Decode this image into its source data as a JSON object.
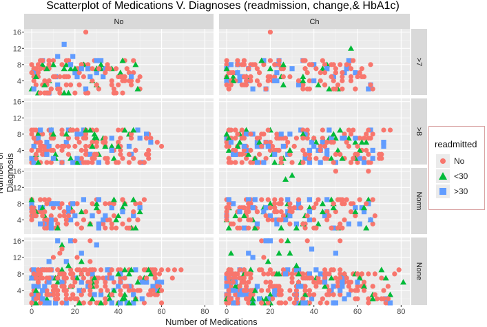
{
  "chart_data": {
    "type": "scatter",
    "title": "Scatterplot of Medications V. Diagnoses (readmission, change,& HbA1c)",
    "xlabel": "Number of Medications",
    "ylabel": "Number of Diagnosis",
    "xlim": [
      -3.5,
      84
    ],
    "ylim": [
      0.5,
      16.8
    ],
    "xticks": [
      "0",
      "20",
      "40",
      "60",
      "80"
    ],
    "xtick_values": [
      0,
      20,
      40,
      60,
      80
    ],
    "yticks": [
      "4",
      "8",
      "12",
      "16"
    ],
    "ytick_values": [
      4,
      8,
      12,
      16
    ],
    "facet_cols": [
      "No",
      "Ch"
    ],
    "facet_rows": [
      ">7",
      ">8",
      "Norm",
      "None"
    ],
    "legend": {
      "title": "readmitted",
      "position": "right",
      "entries": [
        {
          "label": "No",
          "shape": "circle",
          "color": "#F8766D"
        },
        {
          "label": "<30",
          "shape": "triangle",
          "color": "#00BA38"
        },
        {
          "label": ">30",
          "shape": "square",
          "color": "#619CFF"
        }
      ]
    },
    "facets": [
      {
        "row": ">7",
        "col": "No",
        "bulk": {
          "xmax": 50,
          "ymin": 1,
          "ymax": 9,
          "n": 140
        },
        "points": [
          [
            25,
            16,
            "No"
          ],
          [
            15,
            13,
            ">30"
          ],
          [
            12,
            10,
            ">30"
          ],
          [
            19,
            10,
            ">30"
          ],
          [
            48,
            8,
            "<30"
          ],
          [
            42,
            9,
            "<30"
          ],
          [
            50,
            5,
            "No"
          ]
        ]
      },
      {
        "row": ">7",
        "col": "Ch",
        "bulk": {
          "xmax": 67,
          "ymin": 2,
          "ymax": 9,
          "n": 160
        },
        "points": [
          [
            20,
            16,
            "No"
          ],
          [
            57,
            12,
            "<30"
          ],
          [
            42,
            3,
            "<30"
          ],
          [
            66,
            8,
            "No"
          ],
          [
            48,
            5,
            "No"
          ]
        ]
      },
      {
        "row": ">8",
        "col": "No",
        "bulk": {
          "xmax": 55,
          "ymin": 1,
          "ymax": 9,
          "n": 180
        },
        "points": [
          [
            47,
            9,
            "<30"
          ],
          [
            53,
            7,
            "No"
          ],
          [
            58,
            6,
            "No"
          ],
          [
            60,
            5,
            "No"
          ],
          [
            37,
            4,
            ">30"
          ]
        ]
      },
      {
        "row": ">8",
        "col": "Ch",
        "bulk": {
          "xmax": 72,
          "ymin": 1,
          "ymax": 9,
          "n": 220
        },
        "points": [
          [
            75,
            9,
            "No"
          ],
          [
            52,
            9,
            "<30"
          ],
          [
            65,
            7,
            "No"
          ],
          [
            60,
            5,
            "No"
          ]
        ]
      },
      {
        "row": "Norm",
        "col": "No",
        "bulk": {
          "xmax": 50,
          "ymin": 2,
          "ymax": 9,
          "n": 130
        },
        "points": [
          [
            43,
            8,
            "<30"
          ],
          [
            47,
            6,
            "No"
          ],
          [
            40,
            5,
            "<30"
          ],
          [
            52,
            9,
            "No"
          ]
        ]
      },
      {
        "row": "Norm",
        "col": "Ch",
        "bulk": {
          "xmax": 68,
          "ymin": 2,
          "ymax": 9,
          "n": 170
        },
        "points": [
          [
            27,
            14,
            "<30"
          ],
          [
            30,
            15,
            "<30"
          ],
          [
            50,
            16,
            "No"
          ],
          [
            65,
            16,
            "No"
          ],
          [
            38,
            9,
            ">30"
          ]
        ]
      },
      {
        "row": "None",
        "col": "No",
        "bulk": {
          "xmax": 60,
          "ymin": 1,
          "ymax": 9,
          "n": 280
        },
        "points": [
          [
            12,
            16,
            ">30"
          ],
          [
            14,
            15,
            "<30"
          ],
          [
            18,
            16,
            ">30"
          ],
          [
            20,
            16,
            "No"
          ],
          [
            27,
            16,
            "No"
          ],
          [
            30,
            15,
            ">30"
          ],
          [
            10,
            12,
            "No"
          ],
          [
            13,
            13,
            "No"
          ],
          [
            14,
            14,
            "No"
          ],
          [
            16,
            11,
            ">30"
          ],
          [
            17,
            10,
            "<30"
          ],
          [
            21,
            12,
            "No"
          ],
          [
            23,
            11,
            "<30"
          ],
          [
            23,
            13,
            ">30"
          ],
          [
            27,
            11,
            "No"
          ],
          [
            8,
            11,
            ">30"
          ],
          [
            63,
            9,
            "No"
          ],
          [
            66,
            9,
            "No"
          ],
          [
            69,
            9,
            "No"
          ],
          [
            65,
            7,
            "No"
          ],
          [
            60,
            4,
            "No"
          ]
        ]
      },
      {
        "row": "None",
        "col": "Ch",
        "bulk": {
          "xmax": 75,
          "ymin": 1,
          "ymax": 9,
          "n": 320
        },
        "points": [
          [
            2,
            13,
            "<30"
          ],
          [
            10,
            13,
            ">30"
          ],
          [
            12,
            12,
            ">30"
          ],
          [
            16,
            16,
            "No"
          ],
          [
            18,
            16,
            ">30"
          ],
          [
            20,
            16,
            ">30"
          ],
          [
            25,
            16,
            "No"
          ],
          [
            28,
            16,
            "<30"
          ],
          [
            24,
            13,
            "<30"
          ],
          [
            29,
            13,
            "<30"
          ],
          [
            37,
            16,
            "No"
          ],
          [
            39,
            14,
            ">30"
          ],
          [
            50,
            13,
            ">30"
          ],
          [
            52,
            16,
            "No"
          ],
          [
            17,
            12,
            "No"
          ],
          [
            19,
            11,
            "<30"
          ],
          [
            32,
            10,
            "<30"
          ],
          [
            71,
            9,
            "<30"
          ],
          [
            77,
            8,
            "No"
          ],
          [
            79,
            9,
            "No"
          ],
          [
            81,
            6,
            "<30"
          ]
        ]
      }
    ]
  }
}
